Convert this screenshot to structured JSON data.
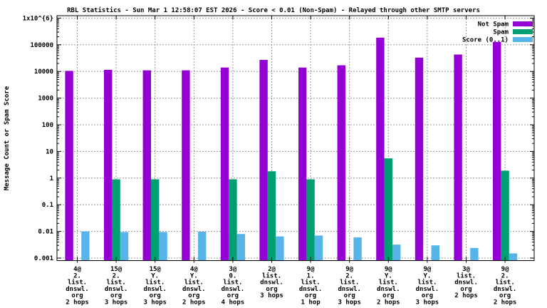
{
  "title": "RBL Statistics - Sun Mar  1 12:58:07 EST 2026 - Score < 0.01 (Non-Spam) - Relayed through other SMTP servers",
  "chart_data": {
    "type": "bar",
    "title": "RBL Statistics - Sun Mar  1 12:58:07 EST 2026 - Score < 0.01 (Non-Spam) - Relayed through other SMTP servers",
    "xlabel": "",
    "ylabel": "Message Count or Spam Score",
    "y_scale": "log",
    "ylim": [
      0.001,
      1000000
    ],
    "grid": true,
    "legend_position": "top-right-inside",
    "y_ticks": [
      {
        "label": "1x10^{6}",
        "value": 1000000
      },
      {
        "label": "100000",
        "value": 100000
      },
      {
        "label": "10000",
        "value": 10000
      },
      {
        "label": "1000",
        "value": 1000
      },
      {
        "label": "100",
        "value": 100
      },
      {
        "label": "10",
        "value": 10
      },
      {
        "label": "1",
        "value": 1
      },
      {
        "label": "0.1",
        "value": 0.1
      },
      {
        "label": "0.01",
        "value": 0.01
      },
      {
        "label": "0.001",
        "value": 0.001
      }
    ],
    "categories": [
      [
        "4@",
        "2.",
        "list.",
        "dnswl.",
        "org",
        "2 hops"
      ],
      [
        "15@",
        "2.",
        "list.",
        "dnswl.",
        "org",
        "3 hops"
      ],
      [
        "15@",
        "Y.",
        "list.",
        "dnswl.",
        "org",
        "3 hops"
      ],
      [
        "4@",
        "Y.",
        "list.",
        "dnswl.",
        "org",
        "2 hops"
      ],
      [
        "3@",
        "0.",
        "list.",
        "dnswl.",
        "org",
        "4 hops"
      ],
      [
        "2@",
        "list.",
        "dnswl.",
        "org",
        "3 hops"
      ],
      [
        "9@",
        "1.",
        "list.",
        "dnswl.",
        "org",
        "1 hop"
      ],
      [
        "9@",
        "2.",
        "list.",
        "dnswl.",
        "org",
        "3 hops"
      ],
      [
        "9@",
        "Y.",
        "list.",
        "dnswl.",
        "org",
        "2 hops"
      ],
      [
        "9@",
        "Y.",
        "list.",
        "dnswl.",
        "org",
        "3 hops"
      ],
      [
        "3@",
        "list.",
        "dnswl.",
        "org",
        "2 hops"
      ],
      [
        "9@",
        "2.",
        "list.",
        "dnswl.",
        "org",
        "2 hops"
      ]
    ],
    "series": [
      {
        "name": "Not Spam",
        "color": "#9400d3",
        "values": [
          10500,
          11500,
          11000,
          11000,
          14000,
          27000,
          14000,
          17000,
          185000,
          33000,
          43000,
          128000
        ]
      },
      {
        "name": "Spam",
        "color": "#009e73",
        "values": [
          null,
          0.9,
          0.9,
          null,
          0.9,
          1.8,
          0.9,
          null,
          5.5,
          null,
          null,
          1.9
        ]
      },
      {
        "name": "Score (0..1)",
        "color": "#56b4e9",
        "values": [
          0.01,
          0.0095,
          0.0095,
          0.0098,
          0.008,
          0.0065,
          0.007,
          0.006,
          0.0032,
          0.003,
          0.0024,
          0.0015
        ]
      }
    ]
  },
  "colors": {
    "background": "#ffffff",
    "border": "#000000",
    "grid": "#9a9a9a",
    "not_spam": "#9400d3",
    "spam": "#009e73",
    "score": "#56b4e9"
  }
}
